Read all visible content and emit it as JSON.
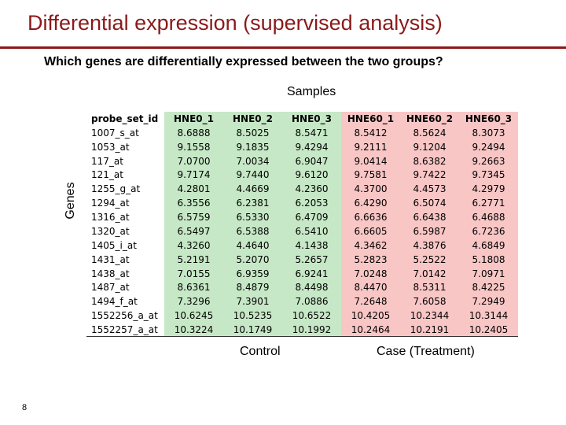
{
  "slide": {
    "title": "Differential expression (supervised analysis)",
    "question": "Which genes are differentially expressed between the two groups?",
    "samples_label": "Samples",
    "genes_label": "Genes",
    "control_label": "Control",
    "case_label": "Case (Treatment)",
    "page_number": "8"
  },
  "colors": {
    "title": "#8b1a1a",
    "control_fill": "#c6e8c6",
    "case_fill": "#f9c6c6"
  },
  "table": {
    "header": [
      "probe_set_id",
      "HNE0_1",
      "HNE0_2",
      "HNE0_3",
      "HNE60_1",
      "HNE60_2",
      "HNE60_3"
    ],
    "rows": [
      [
        "1007_s_at",
        "8.6888",
        "8.5025",
        "8.5471",
        "8.5412",
        "8.5624",
        "8.3073"
      ],
      [
        "1053_at",
        "9.1558",
        "9.1835",
        "9.4294",
        "9.2111",
        "9.1204",
        "9.2494"
      ],
      [
        "117_at",
        "7.0700",
        "7.0034",
        "6.9047",
        "9.0414",
        "8.6382",
        "9.2663"
      ],
      [
        "121_at",
        "9.7174",
        "9.7440",
        "9.6120",
        "9.7581",
        "9.7422",
        "9.7345"
      ],
      [
        "1255_g_at",
        "4.2801",
        "4.4669",
        "4.2360",
        "4.3700",
        "4.4573",
        "4.2979"
      ],
      [
        "1294_at",
        "6.3556",
        "6.2381",
        "6.2053",
        "6.4290",
        "6.5074",
        "6.2771"
      ],
      [
        "1316_at",
        "6.5759",
        "6.5330",
        "6.4709",
        "6.6636",
        "6.6438",
        "6.4688"
      ],
      [
        "1320_at",
        "6.5497",
        "6.5388",
        "6.5410",
        "6.6605",
        "6.5987",
        "6.7236"
      ],
      [
        "1405_i_at",
        "4.3260",
        "4.4640",
        "4.1438",
        "4.3462",
        "4.3876",
        "4.6849"
      ],
      [
        "1431_at",
        "5.2191",
        "5.2070",
        "5.2657",
        "5.2823",
        "5.2522",
        "5.1808"
      ],
      [
        "1438_at",
        "7.0155",
        "6.9359",
        "6.9241",
        "7.0248",
        "7.0142",
        "7.0971"
      ],
      [
        "1487_at",
        "8.6361",
        "8.4879",
        "8.4498",
        "8.4470",
        "8.5311",
        "8.4225"
      ],
      [
        "1494_f_at",
        "7.3296",
        "7.3901",
        "7.0886",
        "7.2648",
        "7.6058",
        "7.2949"
      ],
      [
        "1552256_a_at",
        "10.6245",
        "10.5235",
        "10.6522",
        "10.4205",
        "10.2344",
        "10.3144"
      ],
      [
        "1552257_a_at",
        "10.3224",
        "10.1749",
        "10.1992",
        "10.2464",
        "10.2191",
        "10.2405"
      ]
    ]
  }
}
